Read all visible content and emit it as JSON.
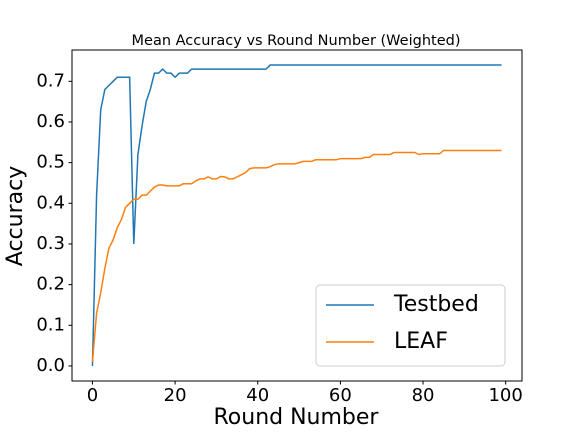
{
  "chart_data": {
    "type": "line",
    "title": "Mean Accuracy vs Round Number (Weighted)",
    "xlabel": "Round Number",
    "ylabel": "Accuracy",
    "x": [
      0,
      1,
      2,
      3,
      4,
      5,
      6,
      7,
      8,
      9,
      10,
      11,
      12,
      13,
      14,
      15,
      16,
      17,
      18,
      19,
      20,
      21,
      22,
      23,
      24,
      25,
      26,
      27,
      28,
      29,
      30,
      31,
      32,
      33,
      34,
      35,
      36,
      37,
      38,
      39,
      40,
      41,
      42,
      43,
      44,
      45,
      46,
      47,
      48,
      49,
      50,
      51,
      52,
      53,
      54,
      55,
      56,
      57,
      58,
      59,
      60,
      61,
      62,
      63,
      64,
      65,
      66,
      67,
      68,
      69,
      70,
      71,
      72,
      73,
      74,
      75,
      76,
      77,
      78,
      79,
      80,
      81,
      82,
      83,
      84,
      85,
      86,
      87,
      88,
      89,
      90,
      91,
      92,
      93,
      94,
      95,
      96,
      97,
      98,
      99
    ],
    "series": [
      {
        "name": "Testbed",
        "color": "#1f77b4",
        "values": [
          0,
          0.42,
          0.63,
          0.68,
          0.69,
          0.7,
          0.71,
          0.71,
          0.71,
          0.71,
          0.3,
          0.52,
          0.59,
          0.65,
          0.68,
          0.72,
          0.72,
          0.73,
          0.72,
          0.72,
          0.71,
          0.72,
          0.72,
          0.72,
          0.73,
          0.73,
          0.73,
          0.73,
          0.73,
          0.73,
          0.73,
          0.73,
          0.73,
          0.73,
          0.73,
          0.73,
          0.73,
          0.73,
          0.73,
          0.73,
          0.73,
          0.73,
          0.73,
          0.74,
          0.74,
          0.74,
          0.74,
          0.74,
          0.74,
          0.74,
          0.74,
          0.74,
          0.74,
          0.74,
          0.74,
          0.74,
          0.74,
          0.74,
          0.74,
          0.74,
          0.74,
          0.74,
          0.74,
          0.74,
          0.74,
          0.74,
          0.74,
          0.74,
          0.74,
          0.74,
          0.74,
          0.74,
          0.74,
          0.74,
          0.74,
          0.74,
          0.74,
          0.74,
          0.74,
          0.74,
          0.74,
          0.74,
          0.74,
          0.74,
          0.74,
          0.74,
          0.74,
          0.74,
          0.74,
          0.74,
          0.74,
          0.74,
          0.74,
          0.74,
          0.74,
          0.74,
          0.74,
          0.74,
          0.74,
          0.74
        ]
      },
      {
        "name": "LEAF",
        "color": "#ff7f0e",
        "values": [
          0.01,
          0.13,
          0.18,
          0.24,
          0.29,
          0.31,
          0.34,
          0.36,
          0.39,
          0.4,
          0.41,
          0.41,
          0.42,
          0.42,
          0.43,
          0.44,
          0.445,
          0.445,
          0.443,
          0.443,
          0.443,
          0.443,
          0.448,
          0.448,
          0.448,
          0.455,
          0.46,
          0.46,
          0.465,
          0.46,
          0.46,
          0.466,
          0.465,
          0.46,
          0.46,
          0.465,
          0.47,
          0.475,
          0.485,
          0.487,
          0.487,
          0.487,
          0.487,
          0.49,
          0.495,
          0.497,
          0.497,
          0.497,
          0.497,
          0.497,
          0.5,
          0.503,
          0.503,
          0.503,
          0.507,
          0.507,
          0.507,
          0.507,
          0.507,
          0.507,
          0.51,
          0.51,
          0.51,
          0.51,
          0.51,
          0.51,
          0.513,
          0.513,
          0.52,
          0.52,
          0.52,
          0.52,
          0.52,
          0.525,
          0.525,
          0.525,
          0.525,
          0.525,
          0.525,
          0.52,
          0.522,
          0.522,
          0.522,
          0.522,
          0.522,
          0.53,
          0.53,
          0.53,
          0.53,
          0.53,
          0.53,
          0.53,
          0.53,
          0.53,
          0.53,
          0.53,
          0.53,
          0.53,
          0.53,
          0.53
        ]
      }
    ],
    "xlim": [
      -4.95,
      103.95
    ],
    "ylim": [
      -0.037,
      0.777
    ],
    "xticks": [
      0,
      20,
      40,
      60,
      80,
      100
    ],
    "yticks": [
      {
        "value": 0,
        "label": "0.0"
      },
      {
        "value": 0.1,
        "label": "0.1"
      },
      {
        "value": 0.2,
        "label": "0.2"
      },
      {
        "value": 0.3,
        "label": "0.3"
      },
      {
        "value": 0.4,
        "label": "0.4"
      },
      {
        "value": 0.5,
        "label": "0.5"
      },
      {
        "value": 0.6,
        "label": "0.6"
      },
      {
        "value": 0.7,
        "label": "0.7"
      }
    ],
    "grid": false,
    "legend": "lower right"
  }
}
